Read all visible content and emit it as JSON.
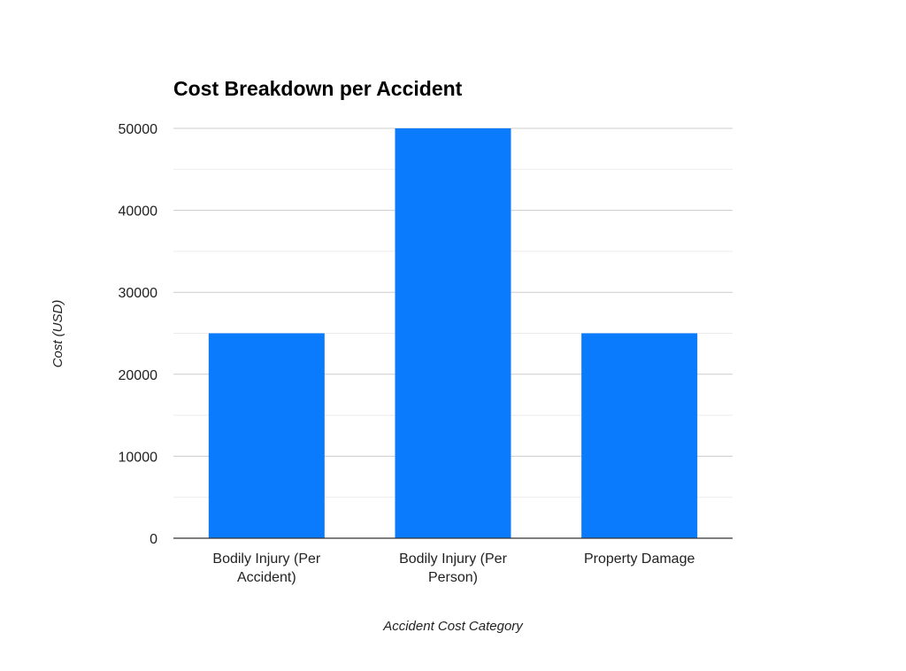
{
  "chart_data": {
    "type": "bar",
    "title": "Cost Breakdown per Accident",
    "xlabel": "Accident Cost Category",
    "ylabel": "Cost (USD)",
    "categories": [
      [
        "Bodily Injury (Per",
        "Accident)"
      ],
      [
        "Bodily Injury (Per",
        "Person)"
      ],
      [
        "Property Damage"
      ]
    ],
    "values": [
      25000,
      50000,
      25000
    ],
    "ylim": [
      0,
      50000
    ],
    "yticks": [
      "0",
      "10000",
      "20000",
      "30000",
      "40000",
      "50000"
    ],
    "grid": true,
    "legend": "none",
    "colors": {
      "bar": "#0a7bfd"
    }
  }
}
